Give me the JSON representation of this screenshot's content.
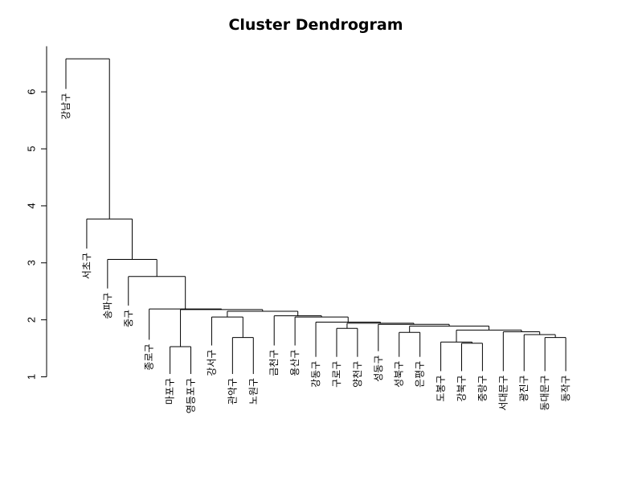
{
  "chart_data": {
    "type": "dendrogram",
    "title": "Cluster Dendrogram",
    "ylabel": "",
    "ylim": [
      1,
      6.8
    ],
    "yticks": [
      1,
      2,
      3,
      4,
      5,
      6
    ],
    "leaves": [
      {
        "label": "강남구",
        "height": 6.05
      },
      {
        "label": "서초구",
        "height": 3.25
      },
      {
        "label": "송파구",
        "height": 2.55
      },
      {
        "label": "중구",
        "height": 2.25
      },
      {
        "label": "종로구",
        "height": 1.65
      },
      {
        "label": "마포구",
        "height": 1.05
      },
      {
        "label": "영등포구",
        "height": 1.05
      },
      {
        "label": "강서구",
        "height": 1.55
      },
      {
        "label": "관악구",
        "height": 1.05
      },
      {
        "label": "노원구",
        "height": 1.05
      },
      {
        "label": "금천구",
        "height": 1.55
      },
      {
        "label": "용산구",
        "height": 1.55
      },
      {
        "label": "강동구",
        "height": 1.35
      },
      {
        "label": "구로구",
        "height": 1.35
      },
      {
        "label": "양천구",
        "height": 1.35
      },
      {
        "label": "성동구",
        "height": 1.45
      },
      {
        "label": "성북구",
        "height": 1.35
      },
      {
        "label": "은평구",
        "height": 1.35
      },
      {
        "label": "도봉구",
        "height": 1.1
      },
      {
        "label": "강북구",
        "height": 1.1
      },
      {
        "label": "중랑구",
        "height": 1.1
      },
      {
        "label": "서대문구",
        "height": 1.1
      },
      {
        "label": "광진구",
        "height": 1.1
      },
      {
        "label": "동대문구",
        "height": 1.1
      },
      {
        "label": "동작구",
        "height": 1.1
      }
    ],
    "merges": [
      {
        "left": "L6",
        "right": "L7",
        "height": 1.53
      },
      {
        "left": "L9",
        "right": "L10",
        "height": 1.69
      },
      {
        "left": "L20",
        "right": "L21",
        "height": 1.59
      },
      {
        "left": "L19",
        "right": "M3",
        "height": 1.61
      },
      {
        "left": "L24",
        "right": "L25",
        "height": 1.69
      },
      {
        "left": "L23",
        "right": "M5",
        "height": 1.74
      },
      {
        "left": "L14",
        "right": "L15",
        "height": 1.85
      },
      {
        "left": "L22",
        "right": "M6",
        "height": 1.79
      },
      {
        "left": "L17",
        "right": "L18",
        "height": 1.78
      },
      {
        "left": "M4",
        "right": "M8",
        "height": 1.82
      },
      {
        "left": "M9",
        "right": "M10",
        "height": 1.89
      },
      {
        "left": "L16",
        "right": "M11",
        "height": 1.92
      },
      {
        "left": "M7",
        "right": "M12",
        "height": 1.94
      },
      {
        "left": "L13",
        "right": "M13",
        "height": 1.96
      },
      {
        "left": "L8",
        "right": "M2",
        "height": 2.05
      },
      {
        "left": "L12",
        "right": "M14",
        "height": 2.05
      },
      {
        "left": "L11",
        "right": "M16",
        "height": 2.07
      },
      {
        "left": "M15",
        "right": "M17",
        "height": 2.15
      },
      {
        "left": "M1",
        "right": "M18",
        "height": 2.18
      },
      {
        "left": "L5",
        "right": "M19",
        "height": 2.19
      },
      {
        "left": "L4",
        "right": "M20",
        "height": 2.76
      },
      {
        "left": "L3",
        "right": "M21",
        "height": 3.06
      },
      {
        "left": "L2",
        "right": "M22",
        "height": 3.77
      },
      {
        "left": "L1",
        "right": "M23",
        "height": 6.58
      }
    ]
  }
}
